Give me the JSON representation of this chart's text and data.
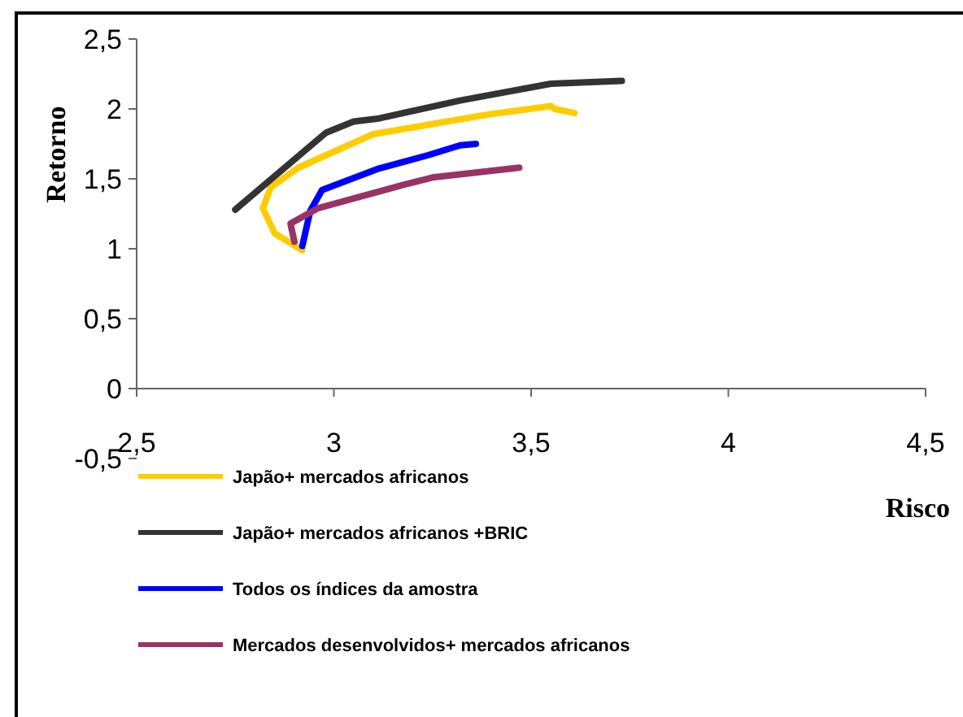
{
  "chart_data": {
    "type": "line",
    "xlabel": "Risco",
    "ylabel": "Retorno",
    "xlim": [
      2.5,
      4.5
    ],
    "ylim": [
      -0.5,
      2.5
    ],
    "xticks": [
      {
        "value": 2.5,
        "label": "2,5"
      },
      {
        "value": 3,
        "label": "3"
      },
      {
        "value": 3.5,
        "label": "3,5"
      },
      {
        "value": 4,
        "label": "4"
      },
      {
        "value": 4.5,
        "label": "4,5"
      }
    ],
    "yticks": [
      {
        "value": -0.5,
        "label": "-0,5"
      },
      {
        "value": 0,
        "label": "0"
      },
      {
        "value": 0.5,
        "label": "0,5"
      },
      {
        "value": 1,
        "label": "1"
      },
      {
        "value": 1.5,
        "label": "1,5"
      },
      {
        "value": 2,
        "label": "2"
      },
      {
        "value": 2.5,
        "label": "2,5"
      }
    ],
    "grid": false,
    "legend": "bottom",
    "marker": "none",
    "line_style": "solid",
    "series": [
      {
        "name": "Japão+ mercados africanos",
        "color": "#ffcc00",
        "x": [
          2.92,
          2.85,
          2.82,
          2.84,
          2.91,
          3.1,
          3.39,
          3.55,
          3.56,
          3.61
        ],
        "values": [
          0.99,
          1.11,
          1.29,
          1.44,
          1.58,
          1.82,
          1.96,
          2.02,
          2.0,
          1.97
        ]
      },
      {
        "name": "Japão+ mercados africanos +BRIC",
        "color": "#333333",
        "x": [
          2.75,
          2.98,
          3.05,
          3.11,
          3.32,
          3.55,
          3.73
        ],
        "values": [
          1.28,
          1.83,
          1.91,
          1.93,
          2.06,
          2.18,
          2.2
        ]
      },
      {
        "name": "Todos os índices da amostra",
        "color": "#0000ff",
        "x": [
          2.92,
          2.94,
          2.97,
          3.11,
          3.24,
          3.32,
          3.36
        ],
        "values": [
          1.02,
          1.27,
          1.42,
          1.57,
          1.67,
          1.74,
          1.75
        ]
      },
      {
        "name": "Mercados desenvolvidos+ mercados africanos",
        "color": "#993366",
        "x": [
          2.9,
          2.89,
          2.96,
          3.18,
          3.25,
          3.47
        ],
        "values": [
          1.05,
          1.18,
          1.29,
          1.46,
          1.51,
          1.58
        ]
      }
    ]
  }
}
